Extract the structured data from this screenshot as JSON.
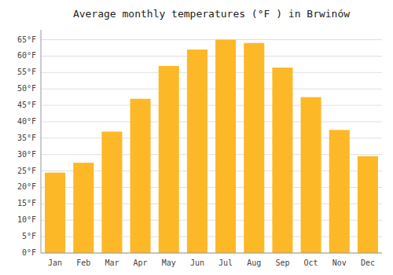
{
  "chart_data": {
    "type": "bar",
    "title": "Average monthly temperatures (°F ) in Brwinów",
    "categories": [
      "Jan",
      "Feb",
      "Mar",
      "Apr",
      "May",
      "Jun",
      "Jul",
      "Aug",
      "Sep",
      "Oct",
      "Nov",
      "Dec"
    ],
    "values": [
      24.5,
      27.5,
      37.0,
      47.0,
      57.0,
      62.0,
      65.0,
      64.0,
      56.5,
      47.5,
      37.5,
      29.5
    ],
    "color": "#FDB827",
    "ylim": [
      0,
      68
    ],
    "yticks": [
      {
        "value": 0,
        "label": "0°F"
      },
      {
        "value": 5,
        "label": "5°F"
      },
      {
        "value": 10,
        "label": "10°F"
      },
      {
        "value": 15,
        "label": "15°F"
      },
      {
        "value": 20,
        "label": "20°F"
      },
      {
        "value": 25,
        "label": "25°F"
      },
      {
        "value": 30,
        "label": "30°F"
      },
      {
        "value": 35,
        "label": "35°F"
      },
      {
        "value": 40,
        "label": "40°F"
      },
      {
        "value": 45,
        "label": "45°F"
      },
      {
        "value": 50,
        "label": "50°F"
      },
      {
        "value": 55,
        "label": "55°F"
      },
      {
        "value": 60,
        "label": "60°F"
      },
      {
        "value": 65,
        "label": "65°F"
      }
    ],
    "grid": true
  }
}
